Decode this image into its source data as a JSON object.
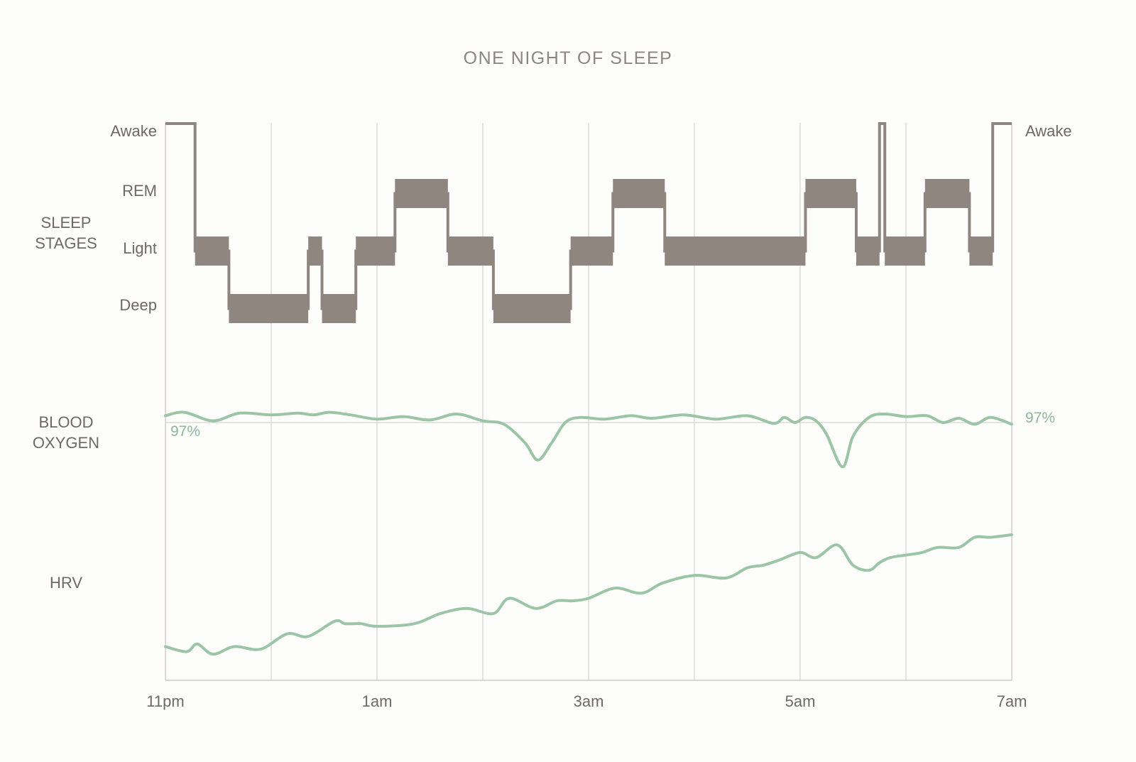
{
  "chart_data": {
    "title": "ONE NIGHT OF SLEEP",
    "type": "line",
    "x_ticks": [
      "11pm",
      "1am",
      "3am",
      "5am",
      "7am"
    ],
    "x_range_hours": [
      23,
      31
    ],
    "rows": {
      "sleep_stages": "SLEEP\nSTAGES",
      "blood_oxygen": "BLOOD\nOXYGEN",
      "hrv": "HRV"
    },
    "stage_labels": [
      "Awake",
      "REM",
      "Light",
      "Deep"
    ],
    "right_stage_label": "Awake",
    "sleep_stages": [
      {
        "start": 23.0,
        "end": 23.28,
        "stage": "Awake"
      },
      {
        "start": 23.28,
        "end": 23.6,
        "stage": "Light"
      },
      {
        "start": 23.6,
        "end": 24.35,
        "stage": "Deep"
      },
      {
        "start": 24.35,
        "end": 24.48,
        "stage": "Light"
      },
      {
        "start": 24.48,
        "end": 24.8,
        "stage": "Deep"
      },
      {
        "start": 24.8,
        "end": 25.17,
        "stage": "Light"
      },
      {
        "start": 25.17,
        "end": 25.67,
        "stage": "REM"
      },
      {
        "start": 25.67,
        "end": 26.1,
        "stage": "Light"
      },
      {
        "start": 26.1,
        "end": 26.83,
        "stage": "Deep"
      },
      {
        "start": 26.83,
        "end": 27.23,
        "stage": "Light"
      },
      {
        "start": 27.23,
        "end": 27.72,
        "stage": "REM"
      },
      {
        "start": 27.72,
        "end": 29.05,
        "stage": "Light"
      },
      {
        "start": 29.05,
        "end": 29.53,
        "stage": "REM"
      },
      {
        "start": 29.53,
        "end": 29.75,
        "stage": "Light"
      },
      {
        "start": 29.75,
        "end": 29.8,
        "stage": "Awake"
      },
      {
        "start": 29.8,
        "end": 30.18,
        "stage": "Light"
      },
      {
        "start": 30.18,
        "end": 30.6,
        "stage": "REM"
      },
      {
        "start": 30.6,
        "end": 30.82,
        "stage": "Light"
      },
      {
        "start": 30.82,
        "end": 31.0,
        "stage": "Awake"
      }
    ],
    "blood_oxygen": {
      "label_start": "97%",
      "label_end": "97%",
      "baseline_pct": 97,
      "x": [
        23.0,
        23.18,
        23.45,
        23.7,
        24.0,
        24.25,
        24.4,
        24.55,
        24.75,
        25.0,
        25.25,
        25.5,
        25.75,
        26.0,
        26.2,
        26.4,
        26.52,
        26.65,
        26.78,
        26.92,
        27.15,
        27.4,
        27.6,
        27.9,
        28.2,
        28.5,
        28.75,
        28.85,
        28.95,
        29.05,
        29.15,
        29.25,
        29.4,
        29.5,
        29.65,
        29.8,
        30.0,
        30.2,
        30.35,
        30.5,
        30.65,
        30.8,
        31.0
      ],
      "y": [
        97.4,
        97.6,
        97.1,
        97.55,
        97.45,
        97.55,
        97.45,
        97.6,
        97.45,
        97.2,
        97.35,
        97.15,
        97.5,
        97.1,
        96.9,
        95.8,
        94.8,
        95.8,
        97.0,
        97.3,
        97.2,
        97.4,
        97.25,
        97.45,
        97.2,
        97.4,
        96.95,
        97.3,
        97.0,
        97.3,
        97.1,
        96.3,
        94.4,
        96.2,
        97.3,
        97.5,
        97.35,
        97.4,
        97.0,
        97.25,
        96.9,
        97.3,
        96.9
      ]
    },
    "hrv": {
      "x": [
        23.0,
        23.2,
        23.3,
        23.45,
        23.65,
        23.9,
        24.15,
        24.35,
        24.6,
        24.7,
        24.85,
        25.0,
        25.35,
        25.6,
        25.85,
        26.1,
        26.25,
        26.5,
        26.7,
        26.85,
        27.0,
        27.25,
        27.5,
        27.7,
        28.0,
        28.3,
        28.5,
        28.65,
        28.8,
        29.0,
        29.15,
        29.35,
        29.5,
        29.65,
        29.75,
        29.85,
        30.0,
        30.15,
        30.3,
        30.5,
        30.65,
        30.8,
        31.0
      ],
      "y": [
        25,
        23,
        26,
        22,
        25,
        24,
        30,
        29,
        35,
        34,
        34,
        33,
        34,
        38,
        40,
        38,
        44,
        40,
        43,
        43,
        44,
        48,
        46,
        50,
        53,
        52,
        56,
        57,
        59,
        62,
        60,
        65,
        57,
        55,
        58,
        60,
        61,
        62,
        64,
        64,
        68,
        68,
        69
      ]
    }
  }
}
